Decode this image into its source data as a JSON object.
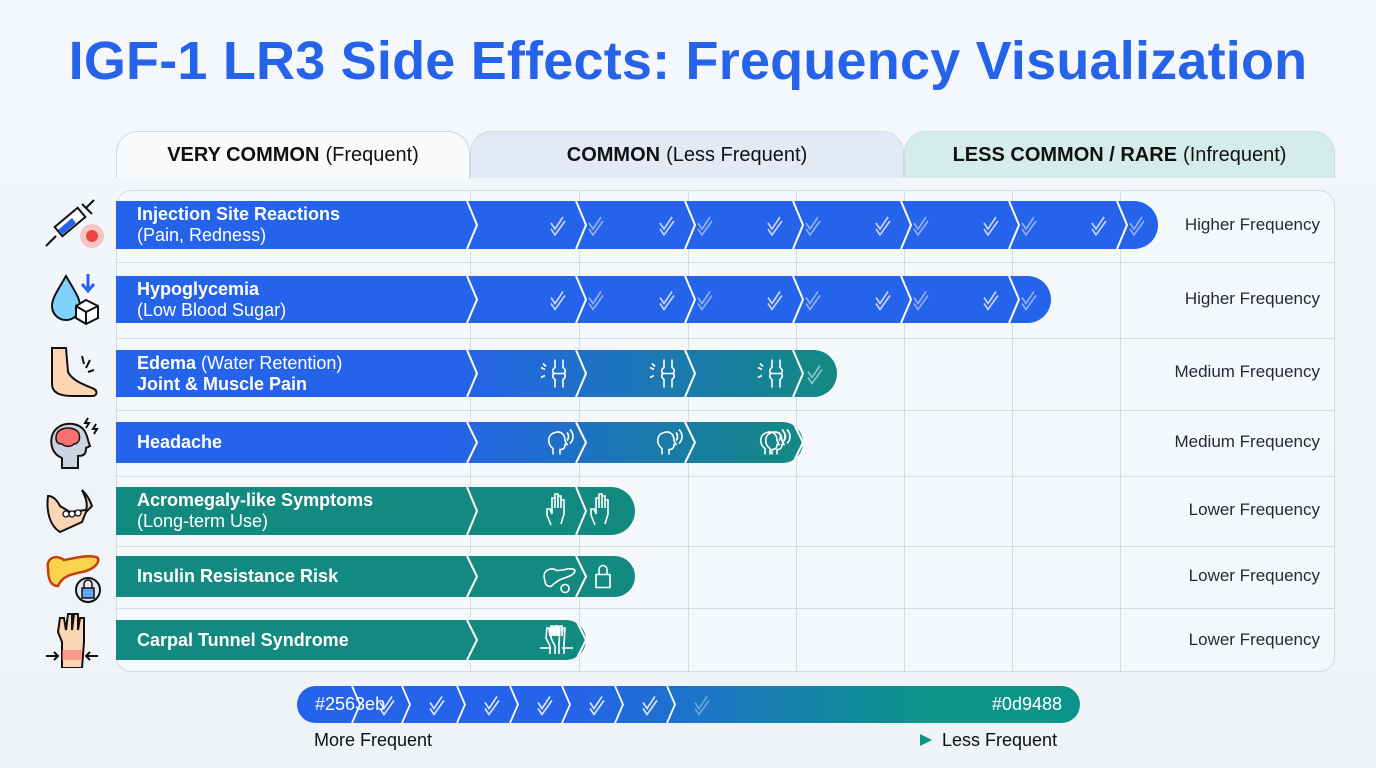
{
  "title": "IGF-1 LR3 Side Effects: Frequency Visualization",
  "categories": [
    {
      "bold": "VERY COMMON",
      "sub": "(Frequent)"
    },
    {
      "bold": "COMMON",
      "sub": "(Less Frequent)"
    },
    {
      "bold": "LESS COMMON / RARE",
      "sub": "(Infrequent)"
    }
  ],
  "colors": {
    "frequent": "#2563eb",
    "infrequent": "#0d9488",
    "title": "#2563eb"
  },
  "chart_data": {
    "type": "bar",
    "orientation": "horizontal",
    "title": "IGF-1 LR3 Side Effects: Frequency Visualization",
    "x_scale": "relative frequency segments (0 = least, 7 = most)",
    "categories": [
      "Injection Site Reactions (Pain, Redness)",
      "Hypoglycemia (Low Blood Sugar)",
      "Edema (Water Retention) Joint & Muscle Pain",
      "Headache",
      "Acromegaly-like Symptoms (Long-term Use)",
      "Insulin Resistance Risk",
      "Carpal Tunnel Syndrome"
    ],
    "values": [
      6.4,
      5.4,
      3.4,
      3.1,
      1.5,
      1.5,
      1.1
    ],
    "column_groups": [
      "VERY COMMON (Frequent)",
      "COMMON (Less Frequent)",
      "LESS COMMON / RARE (Infrequent)"
    ],
    "legend": {
      "start_color": "#2563eb",
      "end_color": "#0d9488",
      "start_label": "More Frequent",
      "end_label": "Less Frequent"
    }
  },
  "rows": [
    {
      "line1_bold": "Injection Site Reactions",
      "line1_rest": "",
      "line2": "(Pain, Redness)",
      "line2_bold": false,
      "frequency": "Higher Frequency",
      "icon": "syringe-icon",
      "segment_icon": "check",
      "color": "blue",
      "segments": 7
    },
    {
      "line1_bold": "Hypoglycemia",
      "line1_rest": "",
      "line2": "(Low Blood Sugar)",
      "line2_bold": false,
      "frequency": "Higher Frequency",
      "icon": "blood-sugar-icon",
      "segment_icon": "check",
      "color": "blue",
      "segments": 6
    },
    {
      "line1_bold": "Edema",
      "line1_rest": " (Water Retention)",
      "line2": "Joint & Muscle Pain",
      "line2_bold": true,
      "frequency": "Medium Frequency",
      "icon": "swollen-foot-icon",
      "segment_icon": "joint",
      "color": "gradient",
      "segments": 4
    },
    {
      "line1_bold": "Headache",
      "line1_rest": "",
      "line2": "",
      "line2_bold": false,
      "frequency": "Medium Frequency",
      "icon": "headache-icon",
      "segment_icon": "head",
      "color": "gradient",
      "segments": 3
    },
    {
      "line1_bold": "Acromegaly-like Symptoms",
      "line1_rest": "",
      "line2": "(Long-term Use)",
      "line2_bold": false,
      "frequency": "Lower Frequency",
      "icon": "jaw-icon",
      "segment_icon": "hand",
      "color": "teal",
      "segments": 2
    },
    {
      "line1_bold": "Insulin Resistance Risk",
      "line1_rest": "",
      "line2": "",
      "line2_bold": false,
      "frequency": "Lower Frequency",
      "icon": "pancreas-lock-icon",
      "segment_icon": "pancreas",
      "color": "teal",
      "segments": 2
    },
    {
      "line1_bold": "Carpal Tunnel Syndrome",
      "line1_rest": "",
      "line2": "",
      "line2_bold": false,
      "frequency": "Lower Frequency",
      "icon": "wrist-icon",
      "segment_icon": "wrist",
      "color": "teal",
      "segments": 1
    }
  ],
  "legend": {
    "start_hex": "#2563eb",
    "end_hex": "#0d9488",
    "more_label": "More Frequent",
    "less_label": "Less Frequent"
  }
}
